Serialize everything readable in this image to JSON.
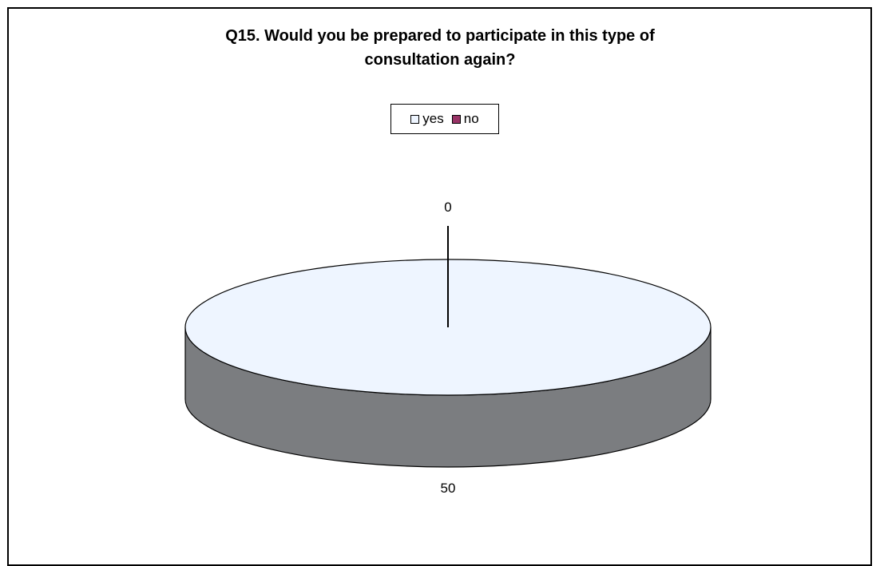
{
  "chart_data": {
    "type": "pie",
    "title": "Q15. Would you be prepared to participate in this type of consultation again?",
    "title_lines": [
      "Q15. Would you be prepared to participate in this type of",
      "consultation again?"
    ],
    "categories": [
      "yes",
      "no"
    ],
    "values": [
      50,
      0
    ],
    "data_labels": [
      "50",
      "0"
    ],
    "colors": {
      "yes": "#eef5ff",
      "no": "#993366",
      "side": "#7b7d80",
      "outline": "#000000"
    },
    "legend_position": "top",
    "style": "3d"
  }
}
